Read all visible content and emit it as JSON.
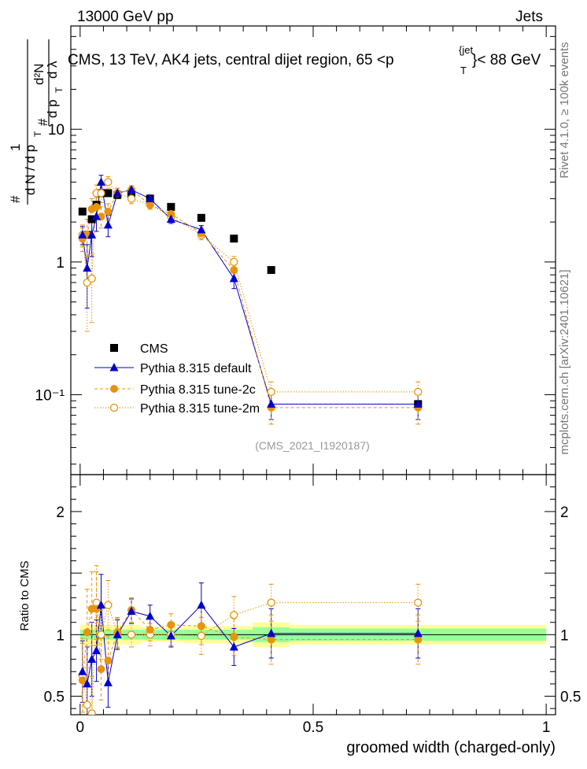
{
  "header": {
    "left": "13000 GeV pp",
    "right": "Jets",
    "title_prefix": "CMS, 13 TeV, AK4 jets, central dijet region, 65 <p",
    "title_sup": "{jet",
    "title_sub": "T",
    "title_suffix": "}< 88 GeV",
    "side_rivet": "Rivet 4.1.0, ≥ 100k events",
    "side_source": "mcplots.cern.ch [arXiv:2401.10621]",
    "analysis_id": "(CMS_2021_I1920187)"
  },
  "ylabel_main": {
    "hash1": "#",
    "one": "1",
    "den": "d N / d p",
    "den_sub": "T",
    "hash2": "#",
    "d2n": "d²N",
    "dp": "d p",
    "dp_sub": "T",
    "dl": "d λ"
  },
  "ylabel_ratio": "Ratio to CMS",
  "xlabel": "groomed width (charged-only)",
  "legend": [
    {
      "key": "cms",
      "label": "CMS"
    },
    {
      "key": "def",
      "label": "Pythia 8.315 default"
    },
    {
      "key": "t2c",
      "label": "Pythia 8.315 tune-2c"
    },
    {
      "key": "t2m",
      "label": "Pythia 8.315 tune-2m"
    }
  ],
  "colors": {
    "cms": "#000000",
    "def": "#0000cc",
    "tune": "#e8940a",
    "band_green": "#99ff99",
    "band_yellow": "#ffff99"
  },
  "chart_data": {
    "type": "scatter",
    "xlim": [
      -0.02,
      1.02
    ],
    "main": {
      "yscale": "log",
      "ylim": [
        0.025,
        60
      ],
      "ytick_labels": [
        "10⁻¹",
        "1",
        "10"
      ],
      "ytick_values": [
        0.1,
        1,
        10
      ]
    },
    "ratio": {
      "ylim": [
        0.35,
        2.3
      ],
      "ytick_labels": [
        "0.5",
        "1",
        "2"
      ],
      "ytick_values": [
        0.5,
        1,
        2
      ]
    },
    "xtick_labels": [
      "0",
      "0.5",
      "1"
    ],
    "xtick_values": [
      0,
      0.5,
      1
    ],
    "bins": [
      {
        "lo": 0.0,
        "hi": 0.01
      },
      {
        "lo": 0.01,
        "hi": 0.02
      },
      {
        "lo": 0.02,
        "hi": 0.03
      },
      {
        "lo": 0.03,
        "hi": 0.04
      },
      {
        "lo": 0.04,
        "hi": 0.05
      },
      {
        "lo": 0.05,
        "hi": 0.07
      },
      {
        "lo": 0.07,
        "hi": 0.09
      },
      {
        "lo": 0.09,
        "hi": 0.13
      },
      {
        "lo": 0.13,
        "hi": 0.17
      },
      {
        "lo": 0.17,
        "hi": 0.22
      },
      {
        "lo": 0.22,
        "hi": 0.29
      },
      {
        "lo": 0.29,
        "hi": 0.37
      },
      {
        "lo": 0.37,
        "hi": 0.45
      },
      {
        "lo": 0.45,
        "hi": 1.0
      }
    ],
    "x": [
      0.005,
      0.015,
      0.025,
      0.035,
      0.045,
      0.06,
      0.08,
      0.11,
      0.15,
      0.195,
      0.26,
      0.33,
      0.41,
      0.725
    ],
    "series": [
      {
        "name": "CMS",
        "key": "cms",
        "values": [
          2.4,
          1.6,
          2.1,
          2.7,
          3.3,
          3.3,
          3.2,
          3.3,
          3.0,
          2.6,
          2.15,
          1.5,
          0.87,
          0.085
        ],
        "band_green": [
          0.04,
          0.04,
          0.04,
          0.04,
          0.04,
          0.04,
          0.04,
          0.04,
          0.04,
          0.04,
          0.04,
          0.04,
          0.06,
          0.05
        ],
        "band_yellow": [
          0.08,
          0.08,
          0.08,
          0.08,
          0.08,
          0.08,
          0.08,
          0.08,
          0.06,
          0.06,
          0.07,
          0.07,
          0.1,
          0.08
        ]
      },
      {
        "name": "Pythia 8.315 default",
        "key": "def",
        "values": [
          1.6,
          0.9,
          1.6,
          2.2,
          4.0,
          1.9,
          3.3,
          3.5,
          3.0,
          2.1,
          1.75,
          0.75,
          0.085,
          0.085
        ],
        "errors": [
          0.25,
          0.45,
          0.5,
          0.5,
          0.5,
          0.35,
          0.3,
          0.25,
          0.2,
          0.15,
          0.13,
          0.12,
          0.02,
          0.02
        ],
        "ratio": [
          0.7,
          0.6,
          0.8,
          0.87,
          1.24,
          0.61,
          1.0,
          1.19,
          1.15,
          0.99,
          1.24,
          0.9,
          1.01,
          1.01
        ],
        "ratio_err": [
          0.25,
          0.3,
          0.3,
          0.25,
          0.25,
          0.2,
          0.12,
          0.1,
          0.09,
          0.09,
          0.18,
          0.15,
          0.2,
          0.2
        ]
      },
      {
        "name": "Pythia 8.315 tune-2c",
        "key": "t2c",
        "values": [
          1.5,
          1.6,
          2.5,
          2.6,
          2.2,
          2.4,
          3.3,
          3.5,
          2.7,
          2.3,
          1.65,
          0.87,
          0.08,
          0.08
        ],
        "errors": [
          0.3,
          0.5,
          0.5,
          0.45,
          0.4,
          0.35,
          0.3,
          0.25,
          0.2,
          0.15,
          0.13,
          0.1,
          0.02,
          0.02
        ],
        "ratio": [
          0.63,
          1.02,
          1.21,
          1.21,
          0.72,
          0.79,
          1.02,
          1.2,
          1.04,
          1.08,
          1.07,
          0.98,
          0.96,
          0.96
        ],
        "ratio_err": [
          0.3,
          0.35,
          0.3,
          0.3,
          0.25,
          0.2,
          0.12,
          0.1,
          0.09,
          0.09,
          0.15,
          0.15,
          0.2,
          0.2
        ]
      },
      {
        "name": "Pythia 8.315 tune-2m",
        "key": "t2m",
        "values": [
          1.6,
          0.7,
          0.75,
          3.3,
          3.3,
          4.0,
          3.3,
          3.0,
          2.7,
          2.2,
          1.6,
          1.0,
          0.105,
          0.105
        ],
        "errors": [
          0.3,
          0.4,
          0.4,
          0.5,
          0.5,
          0.4,
          0.3,
          0.25,
          0.2,
          0.15,
          0.13,
          0.1,
          0.02,
          0.02
        ],
        "ratio": [
          0.67,
          0.43,
          0.36,
          1.26,
          1.0,
          1.24,
          1.01,
          1.0,
          1.0,
          1.0,
          0.99,
          1.16,
          1.26,
          1.26
        ],
        "ratio_err": [
          0.3,
          0.3,
          0.3,
          0.3,
          0.2,
          0.2,
          0.12,
          0.1,
          0.09,
          0.09,
          0.15,
          0.15,
          0.15,
          0.15
        ]
      }
    ]
  }
}
